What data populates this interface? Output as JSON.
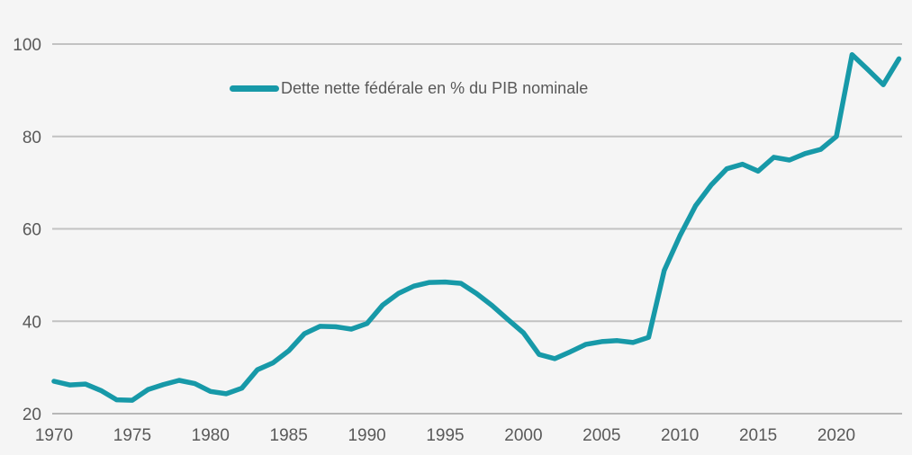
{
  "chart_data": {
    "type": "line",
    "title": "",
    "xlabel": "",
    "ylabel": "",
    "legend": "Dette nette fédérale en % du PIB nominale",
    "legend_position": "inside-top-left",
    "grid": true,
    "ylim": [
      20,
      100
    ],
    "xlim": [
      1970,
      2024.5
    ],
    "y_ticks": [
      20,
      40,
      60,
      80,
      100
    ],
    "x_ticks": [
      1970,
      1975,
      1980,
      1985,
      1990,
      1995,
      2000,
      2005,
      2010,
      2015,
      2020
    ],
    "x": [
      1970,
      1971,
      1972,
      1973,
      1974,
      1975,
      1976,
      1977,
      1978,
      1979,
      1980,
      1981,
      1982,
      1983,
      1984,
      1985,
      1986,
      1987,
      1988,
      1989,
      1990,
      1991,
      1992,
      1993,
      1994,
      1995,
      1996,
      1997,
      1998,
      1999,
      2000,
      2001,
      2002,
      2003,
      2004,
      2005,
      2006,
      2007,
      2008,
      2009,
      2010,
      2011,
      2012,
      2013,
      2014,
      2015,
      2016,
      2017,
      2018,
      2019,
      2020,
      2021,
      2022,
      2023,
      2024
    ],
    "series": [
      {
        "name": "Dette nette fédérale en % du PIB nominale",
        "values": [
          27.0,
          26.2,
          26.4,
          25.0,
          23.0,
          22.9,
          25.2,
          26.3,
          27.2,
          26.5,
          24.8,
          24.3,
          25.5,
          29.5,
          31.0,
          33.6,
          37.3,
          38.9,
          38.8,
          38.3,
          39.5,
          43.5,
          46.0,
          47.6,
          48.4,
          48.5,
          48.2,
          46.0,
          43.4,
          40.4,
          37.5,
          32.8,
          31.9,
          33.4,
          35.0,
          35.6,
          35.8,
          35.4,
          36.5,
          51.0,
          58.5,
          65.0,
          69.5,
          73.0,
          74.0,
          72.5,
          75.5,
          74.9,
          76.3,
          77.2,
          80.0,
          97.7,
          94.5,
          91.2,
          96.8
        ]
      }
    ],
    "colors": {
      "line": "#1799A8",
      "background": "#f5f5f5",
      "grid": "#c2c2c2",
      "axis_text": "#595959"
    }
  }
}
